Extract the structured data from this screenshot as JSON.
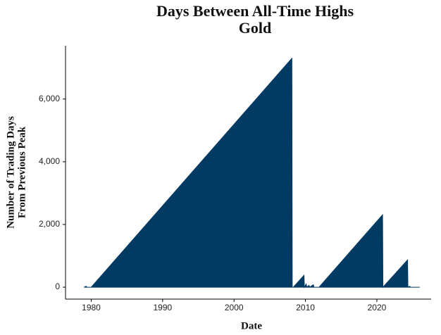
{
  "chart_data": {
    "type": "area",
    "title": "Days Between All-Time Highs",
    "subtitle": "Gold",
    "xlabel": "Date",
    "ylabel": [
      "Number of Trading Days",
      "From Previous Peak"
    ],
    "x": [
      1979.0,
      1979.3,
      1979.4,
      1980.0,
      2008.1,
      2008.15,
      2008.3,
      2009.8,
      2009.85,
      2010.1,
      2010.2,
      2010.5,
      2010.6,
      2011.1,
      2011.2,
      2011.9,
      2020.8,
      2020.85,
      2024.3,
      2024.35,
      2024.6,
      2024.7,
      2026.0
    ],
    "series": [
      {
        "color": "#013a63",
        "values": [
          0,
          30,
          0,
          0,
          7300,
          0,
          0,
          380,
          0,
          100,
          0,
          60,
          0,
          80,
          0,
          0,
          2310,
          0,
          870,
          0,
          30,
          0,
          0
        ]
      }
    ],
    "xlim": [
      1976.4,
      2027.6
    ],
    "ylim": [
      -380,
      7700
    ],
    "xticks": [
      1980,
      1990,
      2000,
      2010,
      2020
    ],
    "yticks": [
      0,
      {
        "value": 2000,
        "label": "2,000"
      },
      {
        "value": 4000,
        "label": "4,000"
      },
      {
        "value": 6000,
        "label": "6,000"
      }
    ],
    "grid": false
  }
}
